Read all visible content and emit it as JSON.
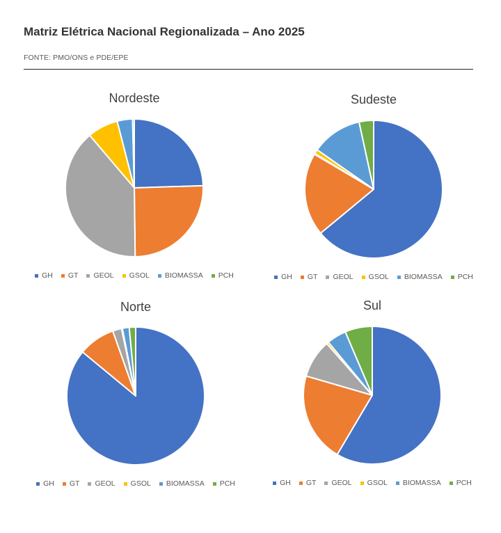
{
  "header": {
    "title": "Matriz Elétrica Nacional Regionalizada – Ano 2025",
    "source": "FONTE:  PMO/ONS e PDE/EPE"
  },
  "colors": {
    "GH": "#4472C4",
    "GT": "#ED7D31",
    "GEOL": "#A5A5A5",
    "GSOL": "#FFC000",
    "BIOMASSA": "#5B9BD5",
    "PCH": "#70AD47"
  },
  "chart_data": [
    {
      "type": "pie",
      "title": "Nordeste",
      "categories": [
        "GH",
        "GT",
        "GEOL",
        "GSOL",
        "BIOMASSA",
        "PCH"
      ],
      "values": [
        24.5,
        25.3,
        39.0,
        7.2,
        3.6,
        0.4
      ]
    },
    {
      "type": "pie",
      "title": "Sudeste",
      "categories": [
        "GH",
        "GT",
        "GEOL",
        "GSOL",
        "BIOMASSA",
        "PCH"
      ],
      "values": [
        64.0,
        19.5,
        0.2,
        1.0,
        11.9,
        3.4
      ]
    },
    {
      "type": "pie",
      "title": "Norte",
      "categories": [
        "GH",
        "GT",
        "GEOL",
        "GSOL",
        "BIOMASSA",
        "PCH"
      ],
      "values": [
        86.0,
        8.6,
        2.1,
        0.2,
        1.6,
        1.5
      ]
    },
    {
      "type": "pie",
      "title": "Sul",
      "categories": [
        "GH",
        "GT",
        "GEOL",
        "GSOL",
        "BIOMASSA",
        "PCH"
      ],
      "values": [
        58.5,
        21.0,
        9.0,
        0.5,
        4.6,
        6.4
      ]
    }
  ]
}
